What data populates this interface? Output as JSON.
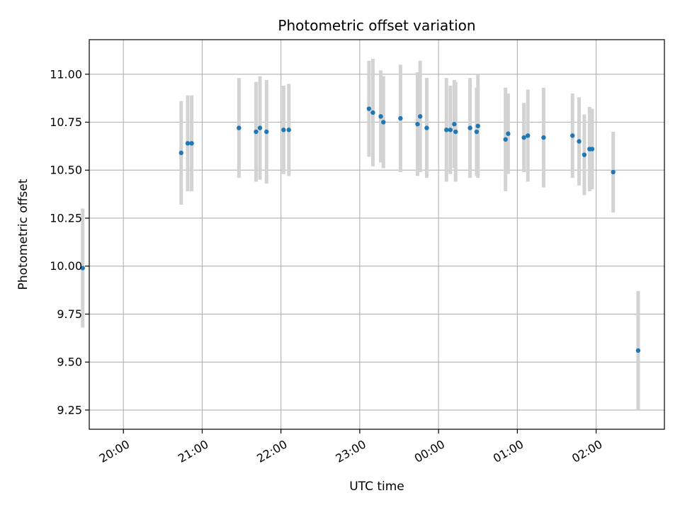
{
  "chart_data": {
    "type": "scatter",
    "title": "Photometric offset variation",
    "xlabel": "UTC time",
    "ylabel": "Photometric offset",
    "xlim": [
      "19:34",
      "02:52"
    ],
    "ylim": [
      9.15,
      11.18
    ],
    "grid": true,
    "x_ticks": [
      "20:00",
      "21:00",
      "22:00",
      "23:00",
      "00:00",
      "01:00",
      "02:00"
    ],
    "y_ticks": [
      "9.25",
      "9.50",
      "9.75",
      "10.00",
      "10.25",
      "10.50",
      "10.75",
      "11.00"
    ],
    "colors": {
      "point": "#1f77b4",
      "errorbar": "#d3d3d3",
      "grid": "#b0b0b0"
    },
    "points": [
      {
        "time": "19:29",
        "y": 9.99,
        "err": 0.31
      },
      {
        "time": "20:44",
        "y": 10.59,
        "err": 0.27
      },
      {
        "time": "20:49",
        "y": 10.64,
        "err": 0.25
      },
      {
        "time": "20:52",
        "y": 10.64,
        "err": 0.25
      },
      {
        "time": "21:28",
        "y": 10.72,
        "err": 0.26
      },
      {
        "time": "21:41",
        "y": 10.7,
        "err": 0.26
      },
      {
        "time": "21:44",
        "y": 10.72,
        "err": 0.27
      },
      {
        "time": "21:49",
        "y": 10.7,
        "err": 0.27
      },
      {
        "time": "22:02",
        "y": 10.71,
        "err": 0.23
      },
      {
        "time": "22:06",
        "y": 10.71,
        "err": 0.24
      },
      {
        "time": "23:07",
        "y": 10.82,
        "err": 0.25
      },
      {
        "time": "23:10",
        "y": 10.8,
        "err": 0.28
      },
      {
        "time": "23:16",
        "y": 10.78,
        "err": 0.24
      },
      {
        "time": "23:18",
        "y": 10.75,
        "err": 0.24
      },
      {
        "time": "23:31",
        "y": 10.77,
        "err": 0.28
      },
      {
        "time": "23:44",
        "y": 10.74,
        "err": 0.27
      },
      {
        "time": "23:46",
        "y": 10.78,
        "err": 0.29
      },
      {
        "time": "23:51",
        "y": 10.72,
        "err": 0.26
      },
      {
        "time": "00:06",
        "y": 10.71,
        "err": 0.27
      },
      {
        "time": "00:09",
        "y": 10.71,
        "err": 0.23
      },
      {
        "time": "00:12",
        "y": 10.74,
        "err": 0.23
      },
      {
        "time": "00:13",
        "y": 10.7,
        "err": 0.26
      },
      {
        "time": "00:24",
        "y": 10.72,
        "err": 0.26
      },
      {
        "time": "00:29",
        "y": 10.7,
        "err": 0.23
      },
      {
        "time": "00:30",
        "y": 10.73,
        "err": 0.27
      },
      {
        "time": "00:51",
        "y": 10.66,
        "err": 0.27
      },
      {
        "time": "00:53",
        "y": 10.69,
        "err": 0.21
      },
      {
        "time": "01:05",
        "y": 10.67,
        "err": 0.18
      },
      {
        "time": "01:08",
        "y": 10.68,
        "err": 0.24
      },
      {
        "time": "01:20",
        "y": 10.67,
        "err": 0.26
      },
      {
        "time": "01:42",
        "y": 10.68,
        "err": 0.22
      },
      {
        "time": "01:47",
        "y": 10.65,
        "err": 0.23
      },
      {
        "time": "01:51",
        "y": 10.58,
        "err": 0.21
      },
      {
        "time": "01:55",
        "y": 10.61,
        "err": 0.22
      },
      {
        "time": "01:57",
        "y": 10.61,
        "err": 0.21
      },
      {
        "time": "02:13",
        "y": 10.49,
        "err": 0.21
      },
      {
        "time": "02:32",
        "y": 9.56,
        "err": 0.31
      }
    ]
  }
}
